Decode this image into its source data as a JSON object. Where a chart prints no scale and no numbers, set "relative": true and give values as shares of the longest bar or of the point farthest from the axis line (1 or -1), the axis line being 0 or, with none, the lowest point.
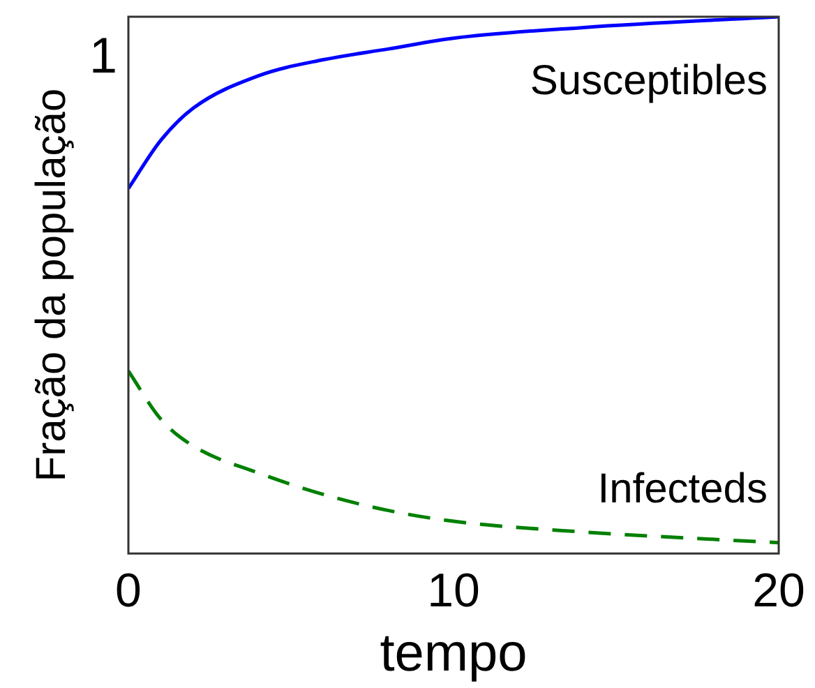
{
  "chart_data": {
    "type": "line",
    "relative": true,
    "xlabel": "tempo",
    "ylabel": "Fração da população",
    "annotations": [
      "1"
    ],
    "xlim": [
      0,
      20
    ],
    "xticks": [
      0,
      10,
      20
    ],
    "legend": false,
    "marker": "none",
    "grid": false,
    "series": [
      {
        "name": "Susceptibles",
        "color": "#0000ff",
        "line_style": "solid",
        "x": [
          0,
          1,
          2,
          4,
          6,
          8,
          10,
          14,
          20
        ],
        "values": [
          0.68,
          0.77,
          0.83,
          0.89,
          0.92,
          0.94,
          0.96,
          0.98,
          1
        ]
      },
      {
        "name": "Infecteds",
        "color": "#008000",
        "line_style": "dashed",
        "x": [
          0,
          1,
          2,
          4,
          6,
          8,
          10,
          14,
          20
        ],
        "values": [
          0.34,
          0.25,
          0.2,
          0.15,
          0.11,
          0.08,
          0.06,
          0.04,
          0.02
        ]
      }
    ]
  }
}
